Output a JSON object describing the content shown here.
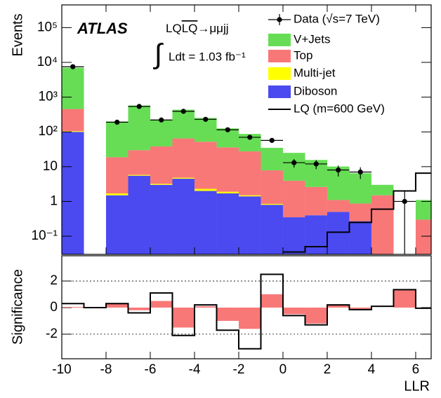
{
  "chart_data": [
    {
      "type": "histogram",
      "stacked": true,
      "log_y": true,
      "annotations": {
        "experiment": "ATLAS",
        "particle": "LQ",
        "antiparticle": "LQ",
        "decay": "→μμjj",
        "integral": "∫",
        "luminosity": "Ldt = 1.03 fb⁻¹"
      },
      "ylabel": "Events",
      "bins": [
        -10,
        -9,
        -8,
        -7,
        -6,
        -5,
        -4,
        -3,
        -2,
        -1,
        0,
        1,
        2,
        3,
        4,
        5,
        6,
        7
      ],
      "xlim": [
        -10,
        6.7
      ],
      "ylim": [
        0.03,
        450000
      ],
      "yticks": [
        {
          "value": 0.1,
          "label": "10⁻¹"
        },
        1,
        10,
        {
          "value": 100,
          "label": "10²"
        },
        {
          "value": 1000,
          "label": "10³"
        },
        {
          "value": 10000,
          "label": "10⁴"
        },
        {
          "value": 100000,
          "label": "10⁵"
        }
      ],
      "series": [
        {
          "name": "V+Jets",
          "color": "#66dd55",
          "values": [
            6550,
            0,
            180,
            545,
            190,
            370,
            200,
            90,
            60,
            27,
            21,
            13,
            9,
            5.6,
            1.5,
            0,
            0.8
          ]
        },
        {
          "name": "Top",
          "color": "#f87878",
          "values": [
            350,
            0,
            17,
            24,
            35,
            60,
            50,
            34,
            26,
            7,
            3.6,
            2.2,
            0.6,
            0.6,
            1.5,
            0,
            0.3
          ]
        },
        {
          "name": "Multi-jet",
          "color": "#ffff00",
          "values": [
            5,
            0,
            0.2,
            0.3,
            0.2,
            0.3,
            0.3,
            0.2,
            0.1,
            0.05,
            0,
            0,
            0,
            0,
            0,
            0,
            0
          ]
        },
        {
          "name": "Diboson",
          "color": "#4a4af0",
          "values": [
            100,
            0,
            1.5,
            5.5,
            3,
            4.5,
            2,
            1.7,
            1.4,
            0.8,
            0.35,
            0.4,
            0.5,
            0.27,
            0,
            0,
            0
          ]
        }
      ],
      "data": {
        "name": "Data (√s=7 TeV)",
        "color": "#000000",
        "values": [
          7500,
          null,
          190,
          540,
          220,
          390,
          230,
          115,
          70,
          57,
          13,
          12,
          8,
          7,
          null,
          1,
          null
        ],
        "errors": [
          87,
          null,
          14,
          23,
          15,
          20,
          15,
          11,
          8,
          8,
          3.6,
          3.5,
          2.8,
          2.6,
          null,
          1,
          null
        ]
      },
      "signal": {
        "name": "LQ (m=600 GeV)",
        "color": "#000000",
        "values": [
          null,
          null,
          null,
          null,
          null,
          null,
          null,
          null,
          null,
          null,
          0.035,
          0.05,
          0.13,
          0.25,
          0.6,
          2,
          6.5
        ]
      }
    },
    {
      "type": "histogram",
      "ylabel": "Significance",
      "xlabel": "LLR",
      "bins": [
        -10,
        -9,
        -8,
        -7,
        -6,
        -5,
        -4,
        -3,
        -2,
        -1,
        0,
        1,
        2,
        3,
        4,
        5,
        6,
        7
      ],
      "xlim": [
        -10,
        6.7
      ],
      "xticks": [
        -10,
        -8,
        -6,
        -4,
        -2,
        0,
        2,
        4,
        6
      ],
      "ylim": [
        -3.85,
        3.9
      ],
      "yticks": [
        -2,
        0,
        2
      ],
      "grid": "dashed",
      "series": [
        {
          "color": "#f87878",
          "values": [
            0.05,
            0,
            0.3,
            -0.2,
            0.5,
            -1.5,
            0.1,
            -1.0,
            -1.6,
            1.0,
            -0.5,
            -1.2,
            0.2,
            -0.1,
            0,
            1.35,
            0
          ]
        },
        {
          "color": "#000000",
          "values": [
            0.3,
            0,
            0.3,
            -0.4,
            1.1,
            -2.1,
            0.2,
            -1.7,
            -3.1,
            2.5,
            -0.6,
            -1.3,
            0.2,
            -0.15,
            0.1,
            1.35,
            -0.05
          ]
        }
      ]
    }
  ]
}
